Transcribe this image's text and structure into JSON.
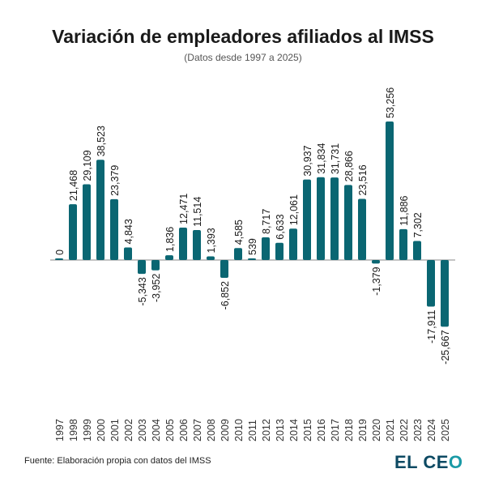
{
  "chart_data": {
    "type": "bar",
    "title": "Variación de empleadores afiliados al IMSS",
    "subtitle": "(Datos desde 1997 a 2025)",
    "xlabel": "",
    "ylabel": "",
    "categories": [
      "1997",
      "1998",
      "1999",
      "2000",
      "2001",
      "2002",
      "2003",
      "2004",
      "2005",
      "2006",
      "2007",
      "2008",
      "2009",
      "2010",
      "2011",
      "2012",
      "2013",
      "2014",
      "2015",
      "2016",
      "2017",
      "2018",
      "2019",
      "2020",
      "2021",
      "2022",
      "2023",
      "2024",
      "2025"
    ],
    "values": [
      0,
      21468,
      29109,
      38523,
      23379,
      4843,
      -5343,
      -3952,
      1836,
      12471,
      11514,
      1393,
      -6852,
      4585,
      539,
      8717,
      6633,
      12061,
      30937,
      31834,
      31731,
      28866,
      23516,
      -1379,
      53256,
      11886,
      7302,
      -17911,
      -25667
    ],
    "labels": [
      "0",
      "21,468",
      "29,109",
      "38,523",
      "23,379",
      "4,843",
      "-5,343",
      "-3,952",
      "1,836",
      "12,471",
      "11,514",
      "1,393",
      "-6,852",
      "4,585",
      "539",
      "8,717",
      "6,633",
      "12,061",
      "30,937",
      "31,834",
      "31,731",
      "28,866",
      "23,516",
      "-1,379",
      "53,256",
      "11,886",
      "7,302",
      "-17,911",
      "-25,667"
    ],
    "grid": false,
    "bar_color": "#0a6672",
    "zero_line_color": "#888888"
  },
  "source": "Fuente: Elaboración propia con datos del IMSS",
  "logo": {
    "part1": "EL CE",
    "part2": "O"
  }
}
